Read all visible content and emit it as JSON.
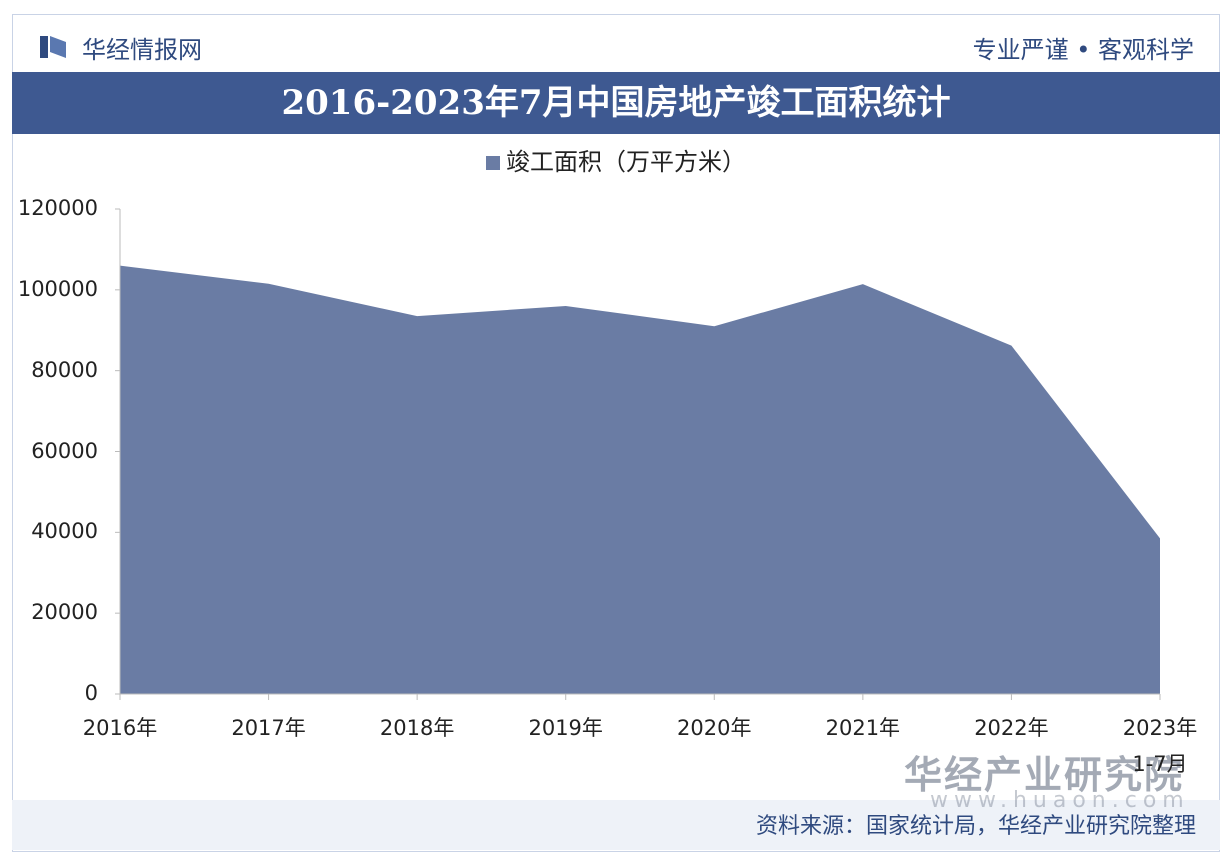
{
  "header": {
    "brand": "华经情报网",
    "slogan": "专业严谨 • 客观科学"
  },
  "chart_data": {
    "type": "area",
    "title": "2016-2023年7月中国房地产竣工面积统计",
    "categories": [
      "2016年",
      "2017年",
      "2018年",
      "2019年",
      "2020年",
      "2021年",
      "2022年",
      "2023年\n1-7月"
    ],
    "series": [
      {
        "name": "竣工面积（万平方米）",
        "color": "#6a7ca4",
        "values": [
          106000,
          101500,
          93500,
          96000,
          91000,
          101400,
          86200,
          38500
        ]
      }
    ],
    "ylim": [
      0,
      120000
    ],
    "yticks": [
      0,
      20000,
      40000,
      60000,
      80000,
      100000,
      120000
    ],
    "legend": "top"
  },
  "watermark": {
    "name": "华经产业研究院",
    "url": "www.huaon.com"
  },
  "footer": {
    "source": "资料来源：国家统计局，华经产业研究院整理"
  }
}
